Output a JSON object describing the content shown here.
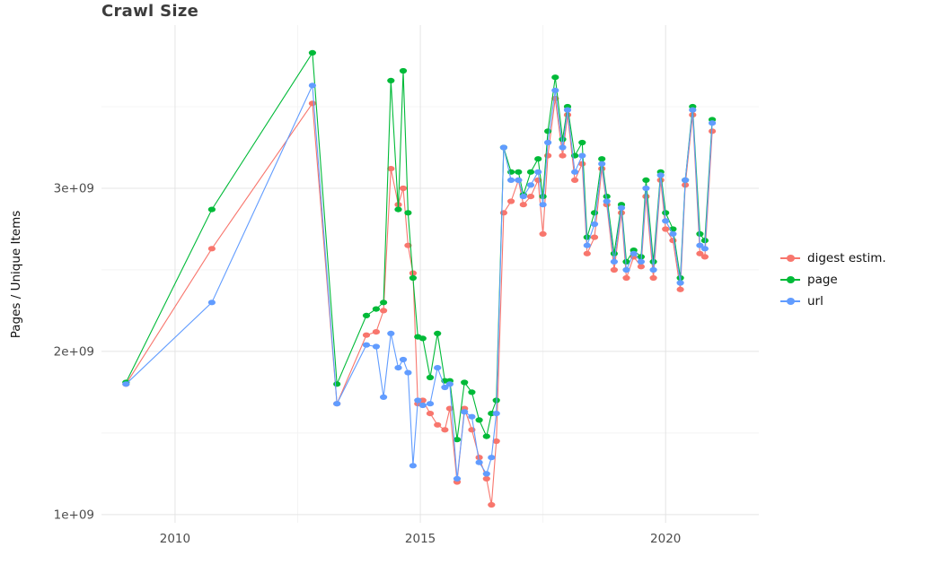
{
  "chart_data": {
    "type": "line",
    "title": "Crawl Size",
    "ylabel": "Pages / Unique Items",
    "xlabel": "",
    "legend_position": "right",
    "value_scale": 1000000000,
    "xlim": [
      2008.5,
      2021.9
    ],
    "ylim": [
      0.95,
      4.0
    ],
    "xticks": [
      {
        "value": 2010,
        "label": "2010"
      },
      {
        "value": 2015,
        "label": "2015"
      },
      {
        "value": 2020,
        "label": "2020"
      }
    ],
    "yticks": [
      {
        "value": 1,
        "label": "1e+09"
      },
      {
        "value": 2,
        "label": "2e+09"
      },
      {
        "value": 3,
        "label": "3e+09"
      }
    ],
    "grid": {
      "minor_x": [
        2012.5,
        2017.5
      ],
      "minor_y": [
        1.5,
        2.5,
        3.5
      ],
      "major_color": "#e4e4e4",
      "minor_color": "#f2f2f2"
    },
    "x": [
      2009.0,
      2010.75,
      2012.8,
      2013.3,
      2013.9,
      2014.1,
      2014.25,
      2014.4,
      2014.55,
      2014.65,
      2014.75,
      2014.85,
      2014.95,
      2015.05,
      2015.2,
      2015.35,
      2015.5,
      2015.6,
      2015.75,
      2015.9,
      2016.05,
      2016.2,
      2016.35,
      2016.45,
      2016.55,
      2016.7,
      2016.85,
      2017.0,
      2017.1,
      2017.25,
      2017.4,
      2017.5,
      2017.6,
      2017.75,
      2017.9,
      2018.0,
      2018.15,
      2018.3,
      2018.4,
      2018.55,
      2018.7,
      2018.8,
      2018.95,
      2019.1,
      2019.2,
      2019.35,
      2019.5,
      2019.6,
      2019.75,
      2019.9,
      2020.0,
      2020.15,
      2020.3,
      2020.4,
      2020.55,
      2020.7,
      2020.8,
      2020.95
    ],
    "series": [
      {
        "id": "digest-estim",
        "name": "digest estim.",
        "color": "#F8766D",
        "values": [
          1.8,
          2.63,
          3.52,
          1.68,
          2.1,
          2.12,
          2.25,
          3.12,
          2.9,
          3.0,
          2.65,
          2.48,
          1.68,
          1.7,
          1.62,
          1.55,
          1.52,
          1.65,
          1.2,
          1.65,
          1.52,
          1.35,
          1.22,
          1.06,
          1.45,
          2.85,
          2.92,
          3.05,
          2.9,
          2.95,
          3.05,
          2.72,
          3.2,
          3.55,
          3.2,
          3.45,
          3.05,
          3.15,
          2.6,
          2.7,
          3.12,
          2.9,
          2.5,
          2.85,
          2.45,
          2.58,
          2.52,
          2.95,
          2.45,
          3.05,
          2.75,
          2.68,
          2.38,
          3.02,
          3.45,
          2.6,
          2.58,
          3.35
        ]
      },
      {
        "id": "page",
        "name": "page",
        "color": "#00BA38",
        "values": [
          1.81,
          2.87,
          3.83,
          1.8,
          2.22,
          2.26,
          2.3,
          3.66,
          2.87,
          3.72,
          2.85,
          2.45,
          2.09,
          2.08,
          1.84,
          2.11,
          1.82,
          1.82,
          1.46,
          1.81,
          1.75,
          1.58,
          1.48,
          1.62,
          1.7,
          3.25,
          3.1,
          3.1,
          2.96,
          3.1,
          3.18,
          2.95,
          3.35,
          3.68,
          3.3,
          3.5,
          3.2,
          3.28,
          2.7,
          2.85,
          3.18,
          2.95,
          2.6,
          2.9,
          2.55,
          2.62,
          2.58,
          3.05,
          2.55,
          3.1,
          2.85,
          2.75,
          2.45,
          3.05,
          3.5,
          2.72,
          2.68,
          3.42
        ]
      },
      {
        "id": "url",
        "name": "url",
        "color": "#619CFF",
        "values": [
          1.8,
          2.3,
          3.63,
          1.68,
          2.04,
          2.03,
          1.72,
          2.11,
          1.9,
          1.95,
          1.87,
          1.3,
          1.7,
          1.67,
          1.68,
          1.9,
          1.78,
          1.8,
          1.22,
          1.63,
          1.6,
          1.32,
          1.25,
          1.35,
          1.62,
          3.25,
          3.05,
          3.05,
          2.95,
          3.02,
          3.1,
          2.9,
          3.28,
          3.6,
          3.25,
          3.48,
          3.1,
          3.2,
          2.65,
          2.78,
          3.15,
          2.92,
          2.55,
          2.88,
          2.5,
          2.6,
          2.55,
          3.0,
          2.5,
          3.08,
          2.8,
          2.72,
          2.42,
          3.05,
          3.48,
          2.65,
          2.63,
          3.4
        ]
      }
    ]
  }
}
